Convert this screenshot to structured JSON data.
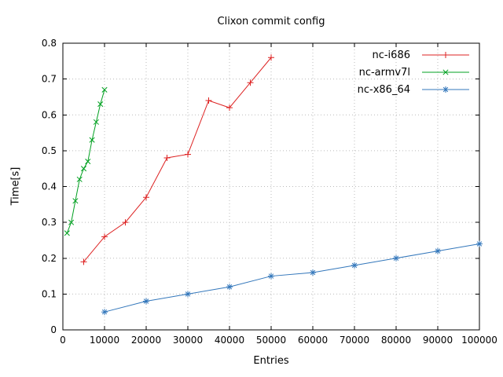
{
  "chart_data": {
    "type": "line",
    "title": "Clixon commit config",
    "xlabel": "Entries",
    "ylabel": "Time[s]",
    "xlim": [
      0,
      100000
    ],
    "ylim": [
      0,
      0.8
    ],
    "xticks": [
      0,
      10000,
      20000,
      30000,
      40000,
      50000,
      60000,
      70000,
      80000,
      90000,
      100000
    ],
    "xtick_labels": [
      "0",
      "10000",
      "20000",
      "30000",
      "40000",
      "50000",
      "60000",
      "70000",
      "80000",
      "90000",
      "100000"
    ],
    "yticks": [
      0,
      0.1,
      0.2,
      0.3,
      0.4,
      0.5,
      0.6,
      0.7,
      0.8
    ],
    "ytick_labels": [
      "0",
      "0.1",
      "0.2",
      "0.3",
      "0.4",
      "0.5",
      "0.6",
      "0.7",
      "0.8"
    ],
    "grid": true,
    "grid_style": "dotted",
    "legend_position": "top-right",
    "colors": {
      "axis": "#000000",
      "grid": "#bbbbbb",
      "background": "#ffffff"
    },
    "series": [
      {
        "name": "nc-i686",
        "color": "#dd2222",
        "marker": "plus",
        "x": [
          5000,
          10000,
          15000,
          20000,
          25000,
          30000,
          35000,
          40000,
          45000,
          50000
        ],
        "values": [
          0.19,
          0.26,
          0.3,
          0.37,
          0.48,
          0.49,
          0.64,
          0.62,
          0.69,
          0.76
        ]
      },
      {
        "name": "nc-armv7l",
        "color": "#00a020",
        "marker": "x",
        "x": [
          1000,
          2000,
          3000,
          4000,
          5000,
          6000,
          7000,
          8000,
          9000,
          10000
        ],
        "values": [
          0.27,
          0.3,
          0.36,
          0.42,
          0.45,
          0.47,
          0.53,
          0.58,
          0.63,
          0.67
        ]
      },
      {
        "name": "nc-x86_64",
        "color": "#3377bb",
        "marker": "asterisk",
        "x": [
          10000,
          20000,
          30000,
          40000,
          50000,
          60000,
          70000,
          80000,
          90000,
          100000
        ],
        "values": [
          0.05,
          0.08,
          0.1,
          0.12,
          0.15,
          0.16,
          0.18,
          0.2,
          0.22,
          0.24
        ]
      }
    ]
  }
}
